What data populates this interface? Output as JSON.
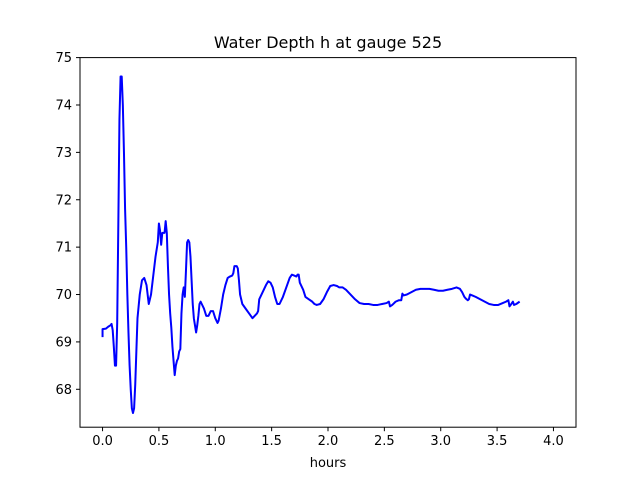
{
  "chart_data": {
    "type": "line",
    "title": "Water Depth h at gauge 525",
    "xlabel": "hours",
    "ylabel": "",
    "xlim": [
      -0.2,
      4.2
    ],
    "ylim": [
      67.2,
      75.0
    ],
    "xticks": [
      0.0,
      0.5,
      1.0,
      1.5,
      2.0,
      2.5,
      3.0,
      3.5,
      4.0
    ],
    "xtick_labels": [
      "0.0",
      "0.5",
      "1.0",
      "1.5",
      "2.0",
      "2.5",
      "3.0",
      "3.5",
      "4.0"
    ],
    "yticks": [
      68,
      69,
      70,
      71,
      72,
      73,
      74,
      75
    ],
    "ytick_labels": [
      "68",
      "69",
      "70",
      "71",
      "72",
      "73",
      "74",
      "75"
    ],
    "grid": false,
    "legend": "none",
    "series": [
      {
        "color": "#0000ff",
        "points": [
          [
            0.0,
            69.1
          ],
          [
            0.0,
            69.27
          ],
          [
            0.03,
            69.28
          ],
          [
            0.05,
            69.32
          ],
          [
            0.07,
            69.35
          ],
          [
            0.08,
            69.38
          ],
          [
            0.09,
            69.25
          ],
          [
            0.1,
            68.9
          ],
          [
            0.11,
            68.5
          ],
          [
            0.12,
            68.5
          ],
          [
            0.13,
            69.4
          ],
          [
            0.14,
            71.5
          ],
          [
            0.15,
            73.7
          ],
          [
            0.16,
            74.6
          ],
          [
            0.17,
            74.6
          ],
          [
            0.18,
            74.0
          ],
          [
            0.19,
            73.0
          ],
          [
            0.2,
            71.8
          ],
          [
            0.21,
            71.0
          ],
          [
            0.22,
            70.0
          ],
          [
            0.23,
            69.2
          ],
          [
            0.24,
            68.5
          ],
          [
            0.25,
            68.0
          ],
          [
            0.26,
            67.6
          ],
          [
            0.27,
            67.5
          ],
          [
            0.28,
            67.6
          ],
          [
            0.29,
            68.1
          ],
          [
            0.3,
            68.8
          ],
          [
            0.31,
            69.5
          ],
          [
            0.33,
            70.0
          ],
          [
            0.35,
            70.3
          ],
          [
            0.37,
            70.35
          ],
          [
            0.39,
            70.2
          ],
          [
            0.41,
            69.8
          ],
          [
            0.43,
            70.0
          ],
          [
            0.45,
            70.4
          ],
          [
            0.47,
            70.8
          ],
          [
            0.49,
            71.1
          ],
          [
            0.5,
            71.5
          ],
          [
            0.51,
            71.35
          ],
          [
            0.52,
            71.05
          ],
          [
            0.53,
            71.3
          ],
          [
            0.55,
            71.3
          ],
          [
            0.56,
            71.55
          ],
          [
            0.57,
            71.3
          ],
          [
            0.58,
            70.6
          ],
          [
            0.59,
            70.0
          ],
          [
            0.6,
            69.6
          ],
          [
            0.61,
            69.3
          ],
          [
            0.62,
            68.9
          ],
          [
            0.63,
            68.6
          ],
          [
            0.64,
            68.3
          ],
          [
            0.65,
            68.5
          ],
          [
            0.66,
            68.6
          ],
          [
            0.67,
            68.65
          ],
          [
            0.68,
            68.8
          ],
          [
            0.69,
            68.85
          ],
          [
            0.7,
            69.6
          ],
          [
            0.71,
            70.0
          ],
          [
            0.72,
            70.15
          ],
          [
            0.73,
            69.95
          ],
          [
            0.74,
            70.5
          ],
          [
            0.75,
            71.1
          ],
          [
            0.76,
            71.15
          ],
          [
            0.77,
            71.1
          ],
          [
            0.78,
            70.8
          ],
          [
            0.79,
            70.3
          ],
          [
            0.8,
            69.8
          ],
          [
            0.81,
            69.5
          ],
          [
            0.82,
            69.35
          ],
          [
            0.83,
            69.2
          ],
          [
            0.84,
            69.35
          ],
          [
            0.85,
            69.55
          ],
          [
            0.86,
            69.8
          ],
          [
            0.87,
            69.85
          ],
          [
            0.88,
            69.8
          ],
          [
            0.9,
            69.7
          ],
          [
            0.92,
            69.55
          ],
          [
            0.94,
            69.55
          ],
          [
            0.96,
            69.65
          ],
          [
            0.98,
            69.65
          ],
          [
            1.0,
            69.5
          ],
          [
            1.02,
            69.4
          ],
          [
            1.03,
            69.45
          ],
          [
            1.05,
            69.7
          ],
          [
            1.07,
            70.0
          ],
          [
            1.09,
            70.2
          ],
          [
            1.11,
            70.35
          ],
          [
            1.13,
            70.38
          ],
          [
            1.15,
            70.4
          ],
          [
            1.16,
            70.45
          ],
          [
            1.17,
            70.6
          ],
          [
            1.19,
            70.6
          ],
          [
            1.2,
            70.55
          ],
          [
            1.21,
            70.3
          ],
          [
            1.22,
            70.0
          ],
          [
            1.24,
            69.8
          ],
          [
            1.27,
            69.7
          ],
          [
            1.3,
            69.6
          ],
          [
            1.33,
            69.5
          ],
          [
            1.35,
            69.55
          ],
          [
            1.37,
            69.6
          ],
          [
            1.38,
            69.65
          ],
          [
            1.39,
            69.9
          ],
          [
            1.4,
            69.95
          ],
          [
            1.43,
            70.1
          ],
          [
            1.45,
            70.2
          ],
          [
            1.47,
            70.28
          ],
          [
            1.49,
            70.25
          ],
          [
            1.51,
            70.15
          ],
          [
            1.53,
            69.95
          ],
          [
            1.55,
            69.8
          ],
          [
            1.57,
            69.8
          ],
          [
            1.6,
            69.95
          ],
          [
            1.63,
            70.15
          ],
          [
            1.66,
            70.35
          ],
          [
            1.68,
            70.42
          ],
          [
            1.7,
            70.4
          ],
          [
            1.72,
            70.38
          ],
          [
            1.73,
            70.42
          ],
          [
            1.74,
            70.42
          ],
          [
            1.75,
            70.25
          ],
          [
            1.77,
            70.15
          ],
          [
            1.78,
            70.1
          ],
          [
            1.8,
            69.95
          ],
          [
            1.83,
            69.9
          ],
          [
            1.86,
            69.85
          ],
          [
            1.88,
            69.8
          ],
          [
            1.9,
            69.78
          ],
          [
            1.93,
            69.8
          ],
          [
            1.96,
            69.9
          ],
          [
            1.99,
            70.05
          ],
          [
            2.02,
            70.18
          ],
          [
            2.05,
            70.2
          ],
          [
            2.08,
            70.18
          ],
          [
            2.1,
            70.15
          ],
          [
            2.13,
            70.15
          ],
          [
            2.16,
            70.1
          ],
          [
            2.2,
            70.0
          ],
          [
            2.24,
            69.9
          ],
          [
            2.28,
            69.82
          ],
          [
            2.32,
            69.8
          ],
          [
            2.36,
            69.8
          ],
          [
            2.4,
            69.78
          ],
          [
            2.44,
            69.78
          ],
          [
            2.48,
            69.8
          ],
          [
            2.52,
            69.82
          ],
          [
            2.54,
            69.85
          ],
          [
            2.55,
            69.75
          ],
          [
            2.57,
            69.78
          ],
          [
            2.6,
            69.85
          ],
          [
            2.63,
            69.88
          ],
          [
            2.65,
            69.88
          ],
          [
            2.66,
            70.02
          ],
          [
            2.67,
            69.98
          ],
          [
            2.7,
            70.0
          ],
          [
            2.74,
            70.05
          ],
          [
            2.78,
            70.1
          ],
          [
            2.82,
            70.12
          ],
          [
            2.86,
            70.12
          ],
          [
            2.9,
            70.12
          ],
          [
            2.94,
            70.1
          ],
          [
            2.98,
            70.08
          ],
          [
            3.02,
            70.08
          ],
          [
            3.06,
            70.1
          ],
          [
            3.1,
            70.12
          ],
          [
            3.14,
            70.15
          ],
          [
            3.17,
            70.12
          ],
          [
            3.19,
            70.05
          ],
          [
            3.21,
            69.95
          ],
          [
            3.22,
            69.92
          ],
          [
            3.24,
            69.88
          ],
          [
            3.25,
            69.9
          ],
          [
            3.26,
            70.0
          ],
          [
            3.28,
            69.98
          ],
          [
            3.31,
            69.95
          ],
          [
            3.35,
            69.9
          ],
          [
            3.39,
            69.85
          ],
          [
            3.43,
            69.8
          ],
          [
            3.47,
            69.78
          ],
          [
            3.51,
            69.78
          ],
          [
            3.55,
            69.82
          ],
          [
            3.58,
            69.85
          ],
          [
            3.6,
            69.88
          ],
          [
            3.61,
            69.75
          ],
          [
            3.62,
            69.78
          ],
          [
            3.64,
            69.85
          ],
          [
            3.65,
            69.78
          ],
          [
            3.67,
            69.8
          ],
          [
            3.7,
            69.85
          ]
        ]
      }
    ]
  }
}
